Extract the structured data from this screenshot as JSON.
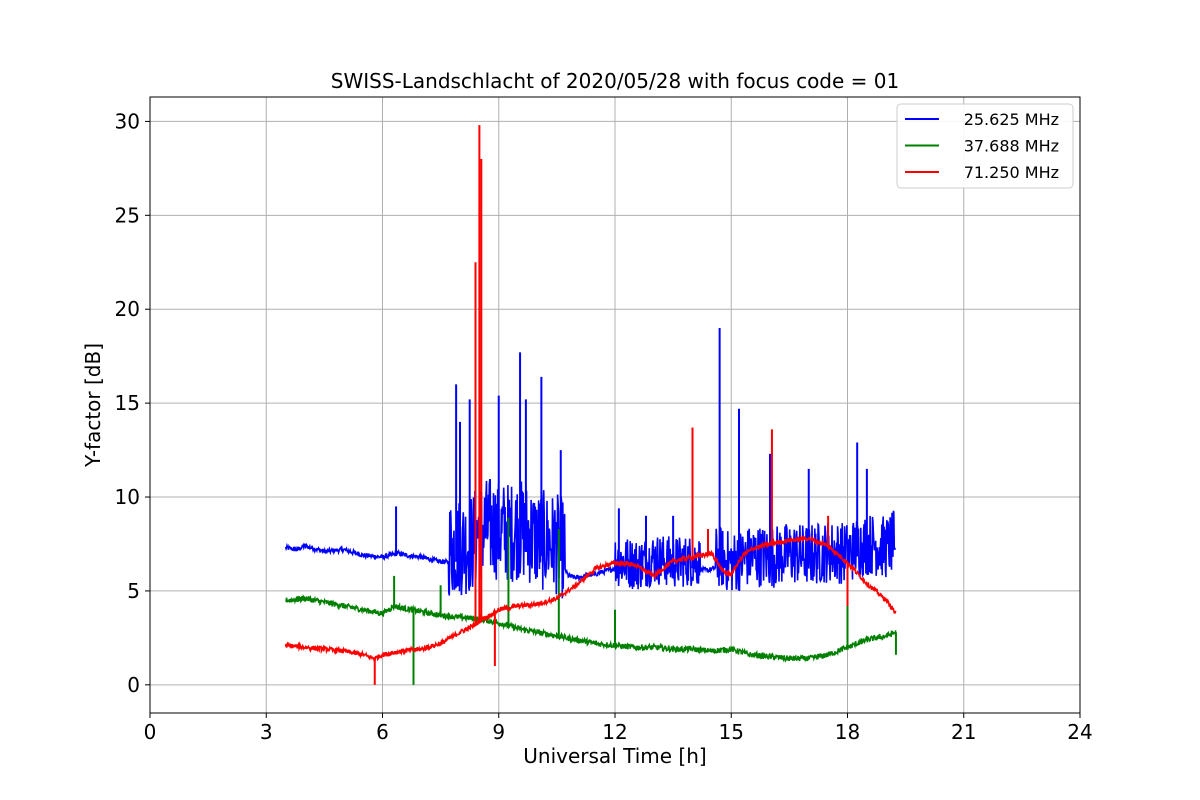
{
  "chart_data": {
    "type": "line",
    "title": "SWISS-Landschlacht of 2020/05/28 with focus code = 01",
    "xlabel": "Universal Time [h]",
    "ylabel": "Y-factor [dB]",
    "xlim": [
      0,
      24
    ],
    "ylim": [
      -1.5,
      31.3
    ],
    "xticks": [
      0,
      3,
      6,
      9,
      12,
      15,
      18,
      21,
      24
    ],
    "yticks": [
      0,
      5,
      10,
      15,
      20,
      25,
      30
    ],
    "grid": true,
    "legend_position": "upper-right",
    "series": [
      {
        "name": "25.625 MHz",
        "color": "#0000ff",
        "x": [
          3.5,
          3.8,
          4.0,
          4.5,
          5.0,
          5.5,
          6.0,
          6.4,
          6.6,
          7.0,
          7.4,
          7.8,
          8.0,
          8.3,
          8.5,
          8.8,
          9.0,
          9.3,
          9.5,
          9.8,
          10.0,
          10.3,
          10.6,
          10.8,
          11.0,
          11.5,
          12.0,
          12.3,
          12.6,
          13.0,
          13.5,
          14.0,
          14.4,
          14.7,
          15.0,
          15.3,
          15.6,
          16.0,
          16.5,
          17.0,
          17.5,
          18.0,
          18.3,
          18.6,
          19.0,
          19.25
        ],
        "y": [
          7.3,
          7.2,
          7.4,
          7.1,
          7.2,
          6.9,
          6.8,
          7.0,
          6.9,
          6.8,
          6.6,
          6.5,
          6.6,
          6.7,
          7.4,
          7.6,
          7.4,
          7.3,
          7.5,
          7.2,
          6.9,
          6.8,
          6.6,
          5.8,
          5.7,
          5.9,
          6.2,
          6.1,
          6.0,
          6.3,
          6.1,
          6.2,
          6.1,
          6.3,
          6.0,
          6.2,
          6.4,
          6.3,
          6.5,
          6.4,
          6.6,
          6.5,
          6.9,
          7.0,
          6.8,
          7.2
        ],
        "spikes": [
          [
            6.35,
            9.5
          ],
          [
            7.9,
            16.0
          ],
          [
            8.0,
            14.0
          ],
          [
            8.25,
            15.2
          ],
          [
            9.0,
            15.4
          ],
          [
            9.55,
            17.7
          ],
          [
            9.7,
            15.2
          ],
          [
            10.1,
            16.4
          ],
          [
            10.6,
            12.5
          ],
          [
            12.1,
            9.4
          ],
          [
            12.8,
            9.0
          ],
          [
            13.5,
            9.0
          ],
          [
            14.0,
            13.7
          ],
          [
            14.7,
            19.0
          ],
          [
            15.2,
            14.7
          ],
          [
            16.0,
            12.3
          ],
          [
            17.0,
            11.5
          ],
          [
            18.25,
            12.9
          ],
          [
            18.5,
            11.5
          ]
        ],
        "bursts": [
          [
            7.7,
            10.7,
            6.8
          ],
          [
            12.0,
            14.2,
            3.5
          ],
          [
            14.6,
            19.2,
            4.2
          ]
        ]
      },
      {
        "name": "37.688 MHz",
        "color": "#008000",
        "x": [
          3.5,
          4.0,
          4.5,
          5.0,
          5.5,
          6.0,
          6.3,
          6.5,
          7.0,
          7.5,
          8.0,
          8.5,
          9.0,
          9.5,
          10.0,
          10.5,
          11.0,
          11.5,
          12.0,
          12.5,
          13.0,
          13.5,
          14.0,
          14.5,
          15.0,
          15.5,
          16.0,
          16.5,
          17.0,
          17.5,
          18.0,
          18.5,
          19.0,
          19.25
        ],
        "y": [
          4.5,
          4.6,
          4.4,
          4.2,
          4.0,
          3.8,
          4.2,
          4.1,
          3.9,
          3.7,
          3.6,
          3.5,
          3.3,
          3.0,
          2.8,
          2.6,
          2.4,
          2.2,
          2.1,
          2.0,
          2.0,
          1.9,
          1.9,
          1.8,
          1.9,
          1.6,
          1.5,
          1.4,
          1.4,
          1.6,
          2.0,
          2.4,
          2.6,
          2.8
        ],
        "spikes": [
          [
            6.3,
            5.8
          ],
          [
            6.8,
            0.0
          ],
          [
            7.5,
            5.3
          ],
          [
            9.25,
            8.9
          ],
          [
            10.55,
            8.3
          ],
          [
            12.0,
            4.0
          ],
          [
            18.0,
            4.3
          ],
          [
            19.25,
            1.6
          ]
        ],
        "bursts": [
          [
            3.5,
            19.25,
            0.6
          ]
        ]
      },
      {
        "name": "71.250 MHz",
        "color": "#ff0000",
        "x": [
          3.5,
          4.0,
          4.5,
          5.0,
          5.5,
          5.8,
          6.0,
          6.5,
          7.0,
          7.5,
          8.0,
          8.3,
          8.45,
          8.55,
          8.7,
          9.0,
          9.5,
          10.0,
          10.5,
          11.0,
          11.5,
          12.0,
          12.5,
          13.0,
          13.5,
          14.0,
          14.5,
          14.8,
          15.0,
          15.3,
          15.6,
          16.0,
          16.5,
          17.0,
          17.5,
          18.0,
          18.5,
          19.0,
          19.25
        ],
        "y": [
          2.1,
          2.0,
          1.9,
          1.8,
          1.6,
          1.4,
          1.6,
          1.8,
          1.9,
          2.2,
          2.8,
          3.1,
          3.3,
          3.5,
          3.6,
          4.0,
          4.2,
          4.3,
          4.6,
          5.3,
          6.2,
          6.5,
          6.4,
          5.8,
          6.6,
          6.8,
          7.0,
          6.0,
          5.9,
          6.9,
          7.3,
          7.5,
          7.7,
          7.8,
          7.4,
          6.5,
          5.4,
          4.5,
          3.8
        ],
        "spikes": [
          [
            5.8,
            0.0
          ],
          [
            8.4,
            22.5
          ],
          [
            8.5,
            29.8
          ],
          [
            8.55,
            28.0
          ],
          [
            8.9,
            1.0
          ],
          [
            14.0,
            13.7
          ],
          [
            14.4,
            8.3
          ],
          [
            16.05,
            13.6
          ],
          [
            17.5,
            9.0
          ],
          [
            18.0,
            4.2
          ]
        ],
        "bursts": [
          [
            3.5,
            19.25,
            0.5
          ]
        ]
      }
    ]
  }
}
